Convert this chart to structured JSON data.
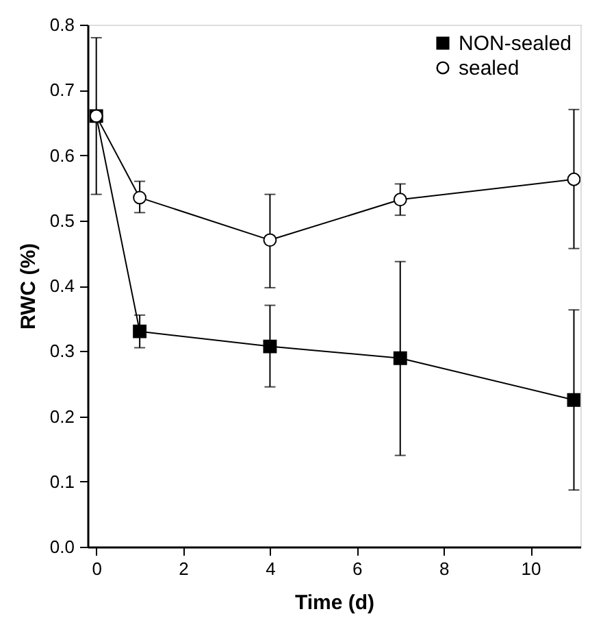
{
  "chart_data": {
    "type": "line",
    "xlabel": "Time (d)",
    "ylabel": "RWC (%)",
    "x": [
      0,
      1,
      4,
      7,
      11
    ],
    "xlim": [
      -0.2,
      11.15
    ],
    "xticks": [
      0,
      2,
      4,
      6,
      8,
      10
    ],
    "ylim": [
      0,
      0.8
    ],
    "yticks": [
      {
        "value": 0,
        "label": "0.0"
      },
      0.1,
      0.2,
      0.3,
      0.4,
      0.5,
      0.6,
      0.7,
      0.8
    ],
    "grid": false,
    "legend": "top right",
    "line_style": "solid",
    "series": [
      {
        "name": "NON-sealed",
        "color": "#000000",
        "marker": "square",
        "values": [
          0.66,
          0.33,
          0.307,
          0.289,
          0.225
        ],
        "errors": [
          [
            0.54,
            0.78
          ],
          [
            0.305,
            0.355
          ],
          [
            0.245,
            0.37
          ],
          [
            0.14,
            0.437
          ],
          [
            0.087,
            0.363
          ]
        ]
      },
      {
        "name": "sealed",
        "color": "#000000",
        "marker": "circle",
        "values": [
          0.66,
          0.535,
          0.47,
          0.532,
          0.563
        ],
        "errors": [
          null,
          [
            0.512,
            0.56
          ],
          [
            0.397,
            0.54
          ],
          [
            0.508,
            0.556
          ],
          [
            0.457,
            0.67
          ]
        ]
      }
    ]
  }
}
